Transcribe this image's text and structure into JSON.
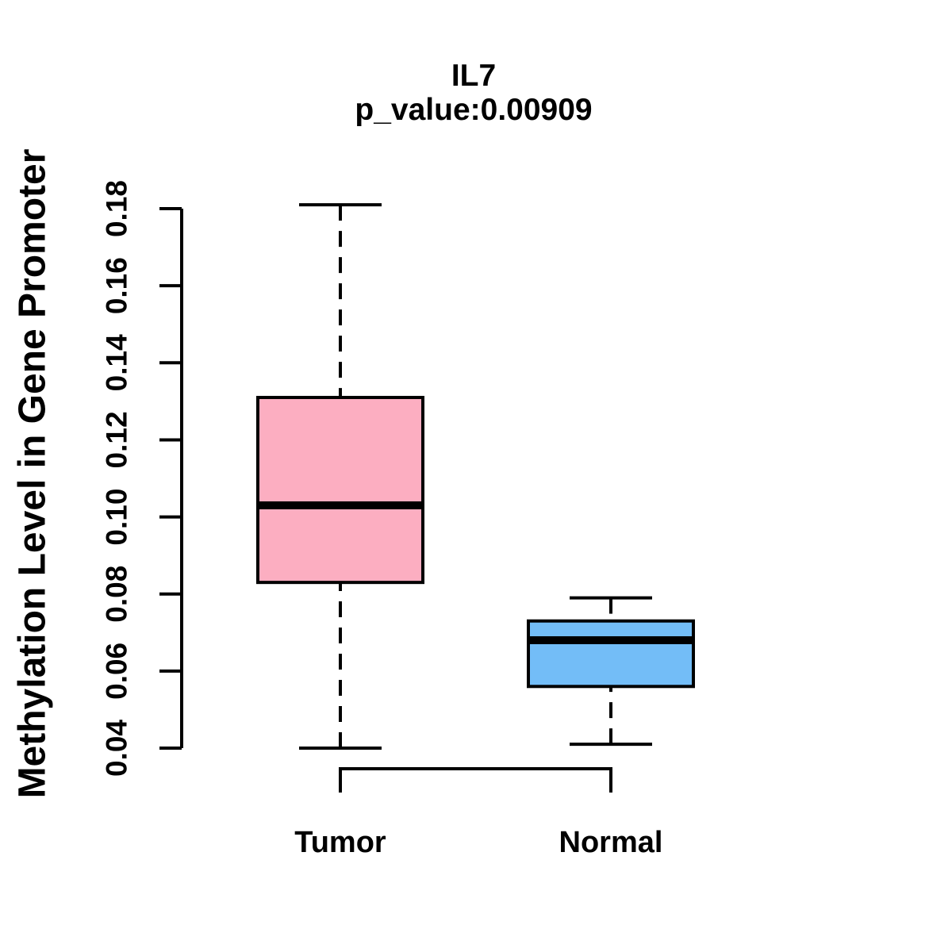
{
  "figure": {
    "title": "IL7",
    "subtitle": "p_value:0.00909",
    "y_axis_title": "Methylation Level in Gene Promoter"
  },
  "chart_data": {
    "type": "boxplot",
    "title": "IL7",
    "subtitle": "p_value:0.00909",
    "xlabel": "",
    "ylabel": "Methylation Level in Gene Promoter",
    "categories": [
      "Tumor",
      "Normal"
    ],
    "y_ticks": [
      0.04,
      0.06,
      0.08,
      0.1,
      0.12,
      0.14,
      0.16,
      0.18
    ],
    "ylim": [
      0.04,
      0.181
    ],
    "grid": false,
    "legend": false,
    "whisker_line_style": "dashed",
    "p_value": 0.00909,
    "gene": "IL7",
    "series": [
      {
        "name": "Tumor",
        "fill_color": "#FCAEC1",
        "stroke_color": "#000000",
        "whisker_low": 0.04,
        "q1": 0.083,
        "median": 0.103,
        "q3": 0.131,
        "whisker_high": 0.181
      },
      {
        "name": "Normal",
        "fill_color": "#73BDF7",
        "stroke_color": "#000000",
        "whisker_low": 0.041,
        "q1": 0.056,
        "median": 0.068,
        "q3": 0.073,
        "whisker_high": 0.079
      }
    ],
    "colors": {
      "background": "#FFFFFF",
      "axis": "#000000",
      "text": "#000000"
    }
  }
}
